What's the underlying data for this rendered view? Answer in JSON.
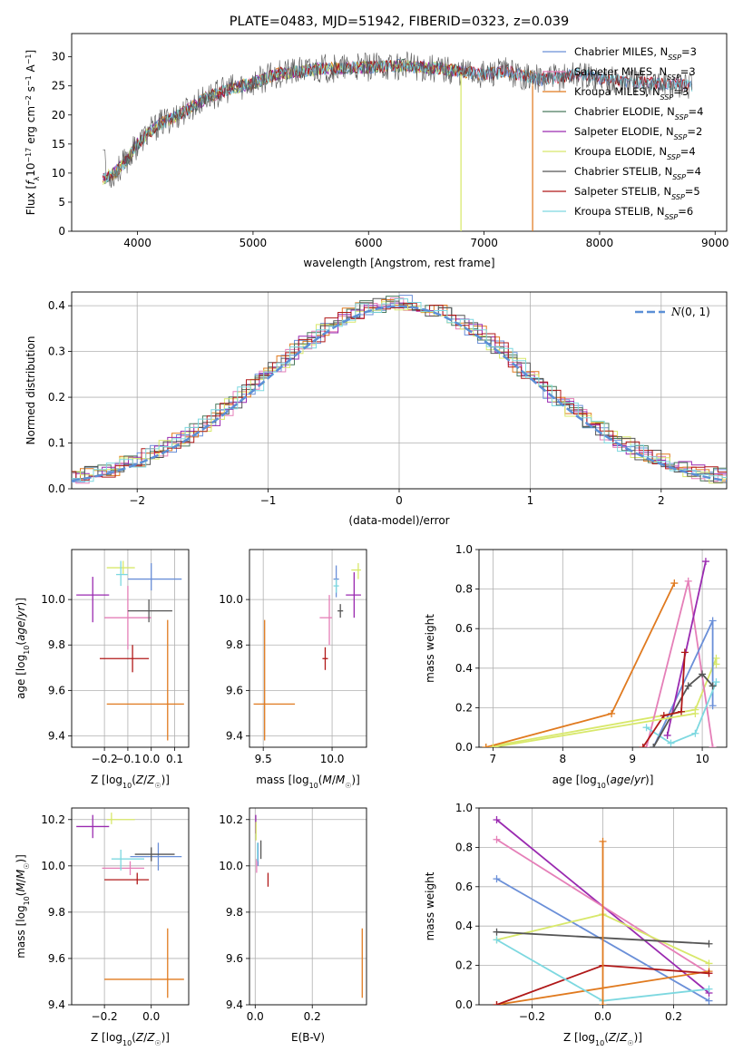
{
  "colors": {
    "Chabrier MILES": "#6a8fd8",
    "Salpeter MILES": "#e57fb8",
    "Kroupa MILES": "#e07a1f",
    "Chabrier ELODIE": "#4a7a5e",
    "Salpeter ELODIE": "#9a2ab0",
    "Kroupa ELODIE": "#d8e86a",
    "Chabrier STELIB": "#555555",
    "Salpeter STELIB": "#b01818",
    "Kroupa STELIB": "#7dd8e0",
    "gaussian": "#5b8fd6"
  },
  "chart_data": [
    {
      "id": "spectrum",
      "type": "line",
      "title": "PLATE=0483, MJD=51942, FIBERID=0323, z=0.039",
      "xlabel": "wavelength [Angstrom, rest frame]",
      "ylabel": "Flux [f_λ10^-17 erg cm^-2 s^-1 A^-1]",
      "xlim": [
        3430,
        9100
      ],
      "ylim": [
        0,
        34
      ],
      "xticks": [
        4000,
        5000,
        6000,
        7000,
        8000,
        9000
      ],
      "yticks": [
        0,
        5,
        10,
        15,
        20,
        25,
        30
      ],
      "grid": false,
      "legend_placement": "top-right",
      "series": [
        {
          "name": "Chabrier MILES, N_SSP=3",
          "main": "Chabrier MILES, N",
          "sub": "SSP",
          "tail": "=3",
          "model": "Chabrier MILES",
          "xmax": 8800
        },
        {
          "name": "Salpeter MILES, N_SSP=3",
          "main": "Salpeter MILES, N",
          "sub": "SSP",
          "tail": "=3",
          "model": "Salpeter MILES",
          "xmax": 8800
        },
        {
          "name": "Kroupa MILES, N_SSP=3",
          "main": "Kroupa MILES, N",
          "sub": "SSP",
          "tail": "=3",
          "model": "Kroupa MILES",
          "xmax": 7420
        },
        {
          "name": "Chabrier ELODIE, N_SSP=4",
          "main": "Chabrier ELODIE, N",
          "sub": "SSP",
          "tail": "=4",
          "model": "Chabrier ELODIE",
          "xmax": 6800
        },
        {
          "name": "Salpeter ELODIE, N_SSP=2",
          "main": "Salpeter ELODIE, N",
          "sub": "SSP",
          "tail": "=2",
          "model": "Salpeter ELODIE",
          "xmax": 6800
        },
        {
          "name": "Kroupa ELODIE, N_SSP=4",
          "main": "Kroupa ELODIE, N",
          "sub": "SSP",
          "tail": "=4",
          "model": "Kroupa ELODIE",
          "xmax": 6800
        },
        {
          "name": "Chabrier STELIB, N_SSP=4",
          "main": "Chabrier STELIB, N",
          "sub": "SSP",
          "tail": "=4",
          "model": "Chabrier STELIB",
          "xmax": 8800
        },
        {
          "name": "Salpeter STELIB, N_SSP=5",
          "main": "Salpeter STELIB, N",
          "sub": "SSP",
          "tail": "=5",
          "model": "Salpeter STELIB",
          "xmax": 8800
        },
        {
          "name": "Kroupa STELIB, N_SSP=6",
          "main": "Kroupa STELIB, N",
          "sub": "SSP",
          "tail": "=6",
          "model": "Kroupa STELIB",
          "xmax": 8800
        }
      ],
      "continuum": [
        [
          3700,
          9
        ],
        [
          3800,
          10
        ],
        [
          3900,
          12
        ],
        [
          4000,
          15
        ],
        [
          4100,
          17
        ],
        [
          4200,
          18.5
        ],
        [
          4400,
          20.5
        ],
        [
          4600,
          23
        ],
        [
          4800,
          24.5
        ],
        [
          5000,
          25.5
        ],
        [
          5200,
          27
        ],
        [
          5400,
          27.5
        ],
        [
          5600,
          28
        ],
        [
          5800,
          28
        ],
        [
          6000,
          28.2
        ],
        [
          6300,
          28.5
        ],
        [
          6600,
          28
        ],
        [
          7000,
          27
        ],
        [
          7200,
          27.5
        ],
        [
          7500,
          26
        ],
        [
          7800,
          27
        ],
        [
          8100,
          26
        ],
        [
          8400,
          25.5
        ],
        [
          8800,
          25
        ]
      ]
    },
    {
      "id": "residuals",
      "type": "histogram",
      "xlabel": "(data-model)/error",
      "ylabel": "Normed distribution",
      "xlim": [
        -2.5,
        2.5
      ],
      "ylim": [
        0,
        0.43
      ],
      "xticks": [
        -2,
        -1,
        0,
        1,
        2
      ],
      "yticks": [
        0.0,
        0.1,
        0.2,
        0.3,
        0.4
      ],
      "grid": true,
      "legend_placement": "top-right",
      "gaussian_label": "N(0,1)"
    },
    {
      "id": "age-vs-z",
      "type": "errorbar",
      "xlabel": "Z [log10(Z/Z☉)]",
      "ylabel": "age  [log10(age/yr)]",
      "xlim": [
        -0.34,
        0.16
      ],
      "ylim": [
        9.35,
        10.22
      ],
      "xticks": [
        -0.2,
        -0.1,
        0.0,
        0.1
      ],
      "yticks": [
        9.4,
        9.6,
        9.8,
        10.0
      ],
      "grid": true,
      "points": [
        {
          "model": "Chabrier MILES",
          "x": 0.0,
          "xerr": [
            0.1,
            0.13
          ],
          "y": 10.09,
          "yerr": [
            0.05,
            0.07
          ]
        },
        {
          "model": "Salpeter MILES",
          "x": -0.1,
          "xerr": [
            0.1,
            0.1
          ],
          "y": 9.92,
          "yerr": [
            0.14,
            0.14
          ]
        },
        {
          "model": "Kroupa MILES",
          "x": 0.07,
          "xerr": [
            0.26,
            0.07
          ],
          "y": 9.54,
          "yerr": [
            0.16,
            0.37
          ]
        },
        {
          "model": "Salpeter ELODIE",
          "x": -0.25,
          "xerr": [
            0.07,
            0.07
          ],
          "y": 10.02,
          "yerr": [
            0.12,
            0.08
          ]
        },
        {
          "model": "Kroupa ELODIE",
          "x": -0.12,
          "xerr": [
            0.07,
            0.05
          ],
          "y": 10.14,
          "yerr": [
            0.03,
            0.03
          ]
        },
        {
          "model": "Chabrier STELIB",
          "x": -0.01,
          "xerr": [
            0.09,
            0.1
          ],
          "y": 9.95,
          "yerr": [
            0.05,
            0.05
          ]
        },
        {
          "model": "Salpeter STELIB",
          "x": -0.08,
          "xerr": [
            0.14,
            0.07
          ],
          "y": 9.74,
          "yerr": [
            0.06,
            0.06
          ]
        },
        {
          "model": "Kroupa STELIB",
          "x": -0.13,
          "xerr": [
            0.02,
            0.03
          ],
          "y": 10.11,
          "yerr": [
            0.05,
            0.06
          ]
        }
      ]
    },
    {
      "id": "age-vs-mass",
      "type": "errorbar",
      "xlabel": "mass [log10(M/M☉)]",
      "ylabel": "",
      "xlim": [
        9.4,
        10.25
      ],
      "ylim": [
        9.35,
        10.22
      ],
      "xticks": [
        9.5,
        10.0
      ],
      "yticks": [
        9.4,
        9.6,
        9.8,
        10.0
      ],
      "grid": true,
      "points": [
        {
          "model": "Chabrier MILES",
          "x": 10.03,
          "xerr": [
            0.02,
            0.02
          ],
          "y": 10.09,
          "yerr": [
            0.08,
            0.06
          ]
        },
        {
          "model": "Salpeter MILES",
          "x": 9.98,
          "xerr": [
            0.07,
            0.02
          ],
          "y": 9.92,
          "yerr": [
            0.12,
            0.1
          ]
        },
        {
          "model": "Kroupa MILES",
          "x": 9.51,
          "xerr": [
            0.08,
            0.22
          ],
          "y": 9.54,
          "yerr": [
            0.16,
            0.37
          ]
        },
        {
          "model": "Salpeter ELODIE",
          "x": 10.16,
          "xerr": [
            0.06,
            0.05
          ],
          "y": 10.02,
          "yerr": [
            0.1,
            0.1
          ]
        },
        {
          "model": "Kroupa ELODIE",
          "x": 10.19,
          "xerr": [
            0.05,
            0.02
          ],
          "y": 10.13,
          "yerr": [
            0.04,
            0.03
          ]
        },
        {
          "model": "Chabrier STELIB",
          "x": 10.06,
          "xerr": [
            0.02,
            0.02
          ],
          "y": 9.95,
          "yerr": [
            0.03,
            0.03
          ]
        },
        {
          "model": "Salpeter STELIB",
          "x": 9.95,
          "xerr": [
            0.02,
            0.02
          ],
          "y": 9.74,
          "yerr": [
            0.05,
            0.05
          ]
        },
        {
          "model": "Kroupa STELIB",
          "x": 10.03,
          "xerr": [
            0.02,
            0.02
          ],
          "y": 10.06,
          "yerr": [
            0.03,
            0.03
          ]
        }
      ]
    },
    {
      "id": "weight-vs-age",
      "type": "line",
      "xlabel": "age  [log10(age/yr)]",
      "ylabel": "mass weight",
      "xlim": [
        6.8,
        10.35
      ],
      "ylim": [
        0,
        1
      ],
      "xticks": [
        7,
        8,
        9,
        10
      ],
      "yticks": [
        0.0,
        0.2,
        0.4,
        0.6,
        0.8,
        1.0
      ],
      "grid": true,
      "series": [
        {
          "model": "Kroupa ELODIE",
          "x": [
            6.9,
            9.9,
            10.2,
            10.2
          ],
          "y": [
            0.0,
            0.19,
            0.45,
            0.42
          ]
        },
        {
          "model": "Kroupa MILES",
          "x": [
            6.9,
            8.7,
            9.6
          ],
          "y": [
            0.0,
            0.17,
            0.83
          ]
        },
        {
          "model": "Salpeter MILES",
          "x": [
            9.2,
            9.8,
            10.15
          ],
          "y": [
            0.0,
            0.84,
            0.0
          ]
        },
        {
          "model": "Chabrier MILES",
          "x": [
            9.3,
            10.15,
            10.15
          ],
          "y": [
            0.0,
            0.64,
            0.21
          ]
        },
        {
          "model": "Salpeter ELODIE",
          "x": [
            9.5,
            10.05
          ],
          "y": [
            0.06,
            0.94
          ]
        },
        {
          "model": "Kroupa STELIB",
          "x": [
            9.2,
            9.55,
            9.9,
            10.2
          ],
          "y": [
            0.1,
            0.02,
            0.07,
            0.33
          ]
        },
        {
          "model": "Chabrier STELIB",
          "x": [
            9.3,
            9.8,
            10.0,
            10.15
          ],
          "y": [
            0.0,
            0.31,
            0.37,
            0.31
          ]
        },
        {
          "model": "Salpeter STELIB",
          "x": [
            9.15,
            9.45,
            9.7,
            9.75
          ],
          "y": [
            0.0,
            0.16,
            0.18,
            0.48
          ]
        },
        {
          "model": "Kroupa ELODIE",
          "x": [
            7.0,
            9.9
          ],
          "y": [
            0.0,
            0.17
          ]
        }
      ]
    },
    {
      "id": "mass-vs-z",
      "type": "errorbar",
      "xlabel": "Z [log10(Z/Z☉)]",
      "ylabel": "mass [log10(M/M☉)]",
      "xlim": [
        -0.34,
        0.16
      ],
      "ylim": [
        9.4,
        10.25
      ],
      "xticks": [
        -0.2,
        0.0
      ],
      "yticks": [
        9.4,
        9.6,
        9.8,
        10.0,
        10.2
      ],
      "grid": true,
      "points": [
        {
          "model": "Chabrier MILES",
          "x": 0.03,
          "xerr": [
            0.12,
            0.1
          ],
          "y": 10.04,
          "yerr": [
            0.06,
            0.06
          ]
        },
        {
          "model": "Salpeter MILES",
          "x": -0.09,
          "xerr": [
            0.12,
            0.06
          ],
          "y": 9.99,
          "yerr": [
            0.03,
            0.03
          ]
        },
        {
          "model": "Kroupa MILES",
          "x": 0.07,
          "xerr": [
            0.27,
            0.07
          ],
          "y": 9.51,
          "yerr": [
            0.08,
            0.22
          ]
        },
        {
          "model": "Salpeter ELODIE",
          "x": -0.25,
          "xerr": [
            0.07,
            0.07
          ],
          "y": 10.17,
          "yerr": [
            0.05,
            0.05
          ]
        },
        {
          "model": "Kroupa ELODIE",
          "x": -0.17,
          "xerr": [
            0.02,
            0.1
          ],
          "y": 10.2,
          "yerr": [
            0.02,
            0.03
          ]
        },
        {
          "model": "Chabrier STELIB",
          "x": 0.0,
          "xerr": [
            0.07,
            0.1
          ],
          "y": 10.05,
          "yerr": [
            0.03,
            0.03
          ]
        },
        {
          "model": "Salpeter STELIB",
          "x": -0.06,
          "xerr": [
            0.14,
            0.05
          ],
          "y": 9.94,
          "yerr": [
            0.02,
            0.03
          ]
        },
        {
          "model": "Kroupa STELIB",
          "x": -0.13,
          "xerr": [
            0.04,
            0.1
          ],
          "y": 10.03,
          "yerr": [
            0.05,
            0.04
          ]
        }
      ]
    },
    {
      "id": "mass-vs-ebv",
      "type": "errorbar",
      "xlabel": "E(B-V)",
      "ylabel": "",
      "xlim": [
        -0.02,
        0.39
      ],
      "ylim": [
        9.4,
        10.25
      ],
      "xticks": [
        0.0,
        0.2
      ],
      "yticks": [
        9.4,
        9.6,
        9.8,
        10.0,
        10.2
      ],
      "grid": true,
      "points": [
        {
          "model": "Chabrier MILES",
          "x": 0.01,
          "xerr": [
            0.0,
            0.0
          ],
          "y": 10.05,
          "yerr": [
            0.05,
            0.05
          ]
        },
        {
          "model": "Salpeter MILES",
          "x": 0.005,
          "xerr": [
            0.0,
            0.0
          ],
          "y": 10.0,
          "yerr": [
            0.03,
            0.03
          ]
        },
        {
          "model": "Kroupa MILES",
          "x": 0.375,
          "xerr": [
            0.0,
            0.0
          ],
          "y": 9.58,
          "yerr": [
            0.15,
            0.15
          ]
        },
        {
          "model": "Salpeter ELODIE",
          "x": 0.002,
          "xerr": [
            0.0,
            0.0
          ],
          "y": 10.18,
          "yerr": [
            0.04,
            0.04
          ]
        },
        {
          "model": "Kroupa ELODIE",
          "x": 0.003,
          "xerr": [
            0.0,
            0.0
          ],
          "y": 10.15,
          "yerr": [
            0.04,
            0.04
          ]
        },
        {
          "model": "Chabrier STELIB",
          "x": 0.02,
          "xerr": [
            0.0,
            0.0
          ],
          "y": 10.07,
          "yerr": [
            0.04,
            0.04
          ]
        },
        {
          "model": "Salpeter STELIB",
          "x": 0.045,
          "xerr": [
            0.0,
            0.0
          ],
          "y": 9.94,
          "yerr": [
            0.03,
            0.03
          ]
        },
        {
          "model": "Kroupa STELIB",
          "x": 0.008,
          "xerr": [
            0.0,
            0.0
          ],
          "y": 10.06,
          "yerr": [
            0.04,
            0.04
          ]
        }
      ]
    },
    {
      "id": "weight-vs-z",
      "type": "line",
      "xlabel": "Z [log10(Z/Z☉)]",
      "ylabel": "mass weight",
      "xlim": [
        -0.35,
        0.35
      ],
      "ylim": [
        0,
        1
      ],
      "xticks": [
        -0.2,
        0.0,
        0.2
      ],
      "yticks": [
        0.0,
        0.2,
        0.4,
        0.6,
        0.8,
        1.0
      ],
      "grid": true,
      "series": [
        {
          "model": "Salpeter ELODIE",
          "x": [
            -0.3,
            0.3
          ],
          "y": [
            0.94,
            0.06
          ]
        },
        {
          "model": "Salpeter MILES",
          "x": [
            -0.3,
            0.3
          ],
          "y": [
            0.84,
            0.16
          ]
        },
        {
          "model": "Chabrier MILES",
          "x": [
            -0.3,
            0.3
          ],
          "y": [
            0.64,
            0.02
          ]
        },
        {
          "model": "Kroupa MILES",
          "x": [
            -0.3,
            0.3
          ],
          "y": [
            0.0,
            0.17
          ]
        },
        {
          "model": "Kroupa ELODIE",
          "x": [
            -0.3,
            0.0,
            0.3
          ],
          "y": [
            0.33,
            0.46,
            0.21
          ]
        },
        {
          "model": "Chabrier STELIB",
          "x": [
            -0.3,
            0.3
          ],
          "y": [
            0.37,
            0.31
          ]
        },
        {
          "model": "Salpeter STELIB",
          "x": [
            -0.3,
            0.0,
            0.3
          ],
          "y": [
            0.0,
            0.2,
            0.16
          ]
        },
        {
          "model": "Kroupa STELIB",
          "x": [
            -0.3,
            0.0,
            0.3
          ],
          "y": [
            0.33,
            0.02,
            0.08
          ]
        },
        {
          "model": "Kroupa MILES",
          "x": [
            0.0,
            0.0
          ],
          "y": [
            0.0,
            0.83
          ]
        }
      ]
    }
  ]
}
